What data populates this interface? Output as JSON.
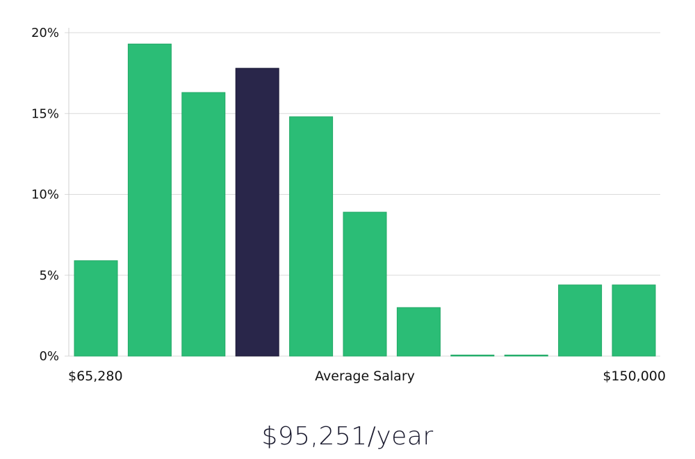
{
  "salary_display": "$95,251/year",
  "x_axis": {
    "min_label": "$65,280",
    "center_label": "Average Salary",
    "max_label": "$150,000"
  },
  "colors": {
    "bar": "#2bbd76",
    "bar_stroke": "#22a866",
    "highlight": "#29264a",
    "highlight_stroke": "#1c1a36"
  },
  "chart_data": {
    "type": "bar",
    "values": [
      5.9,
      19.3,
      16.3,
      17.8,
      14.8,
      8.9,
      3.0,
      0.0,
      0.0,
      4.4,
      4.4
    ],
    "highlight_index": 3,
    "ylim": [
      0,
      20
    ],
    "yticks": [
      0,
      5,
      10,
      15,
      20
    ],
    "ytick_labels": [
      "0%",
      "5%",
      "10%",
      "15%",
      "20%"
    ],
    "grid": true
  }
}
